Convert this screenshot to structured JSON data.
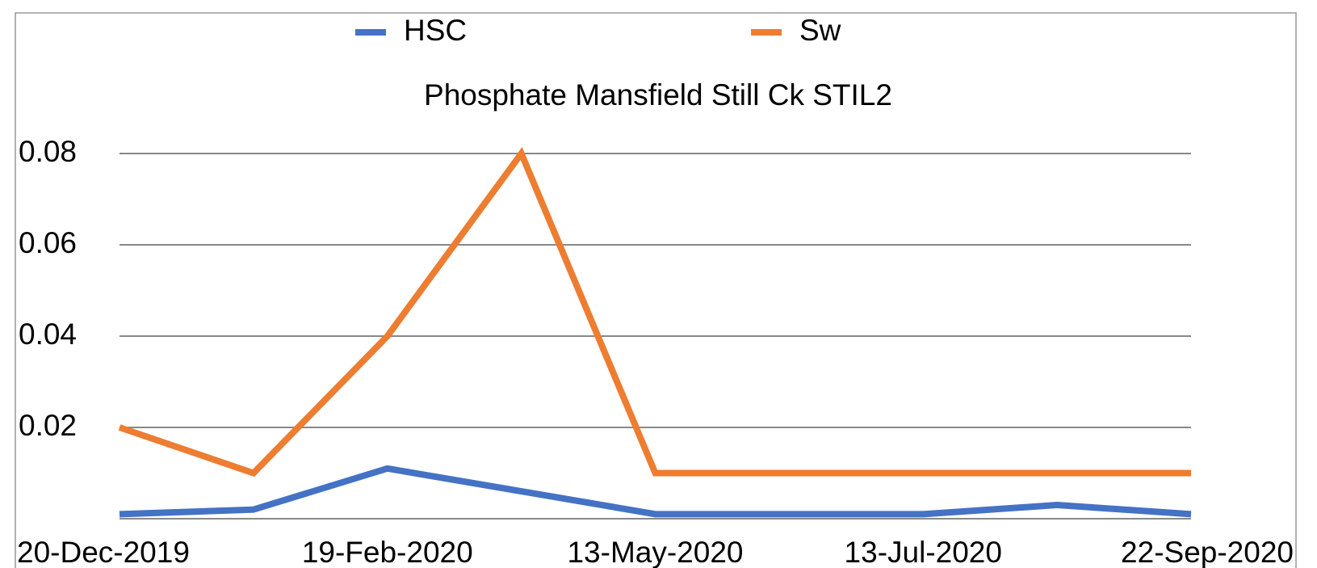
{
  "chart_data": {
    "type": "line",
    "title": "Phosphate Mansfield Still Ck STIL2",
    "categories": [
      "20-Dec-2019",
      null,
      "19-Feb-2020",
      null,
      "13-May-2020",
      null,
      "13-Jul-2020",
      null,
      "22-Sep-2020"
    ],
    "series": [
      {
        "name": "HSC",
        "color": "#4472c4",
        "values": [
          0.001,
          0.002,
          0.011,
          0.006,
          0.001,
          0.001,
          0.001,
          0.003,
          0.001
        ]
      },
      {
        "name": "Sw",
        "color": "#ed7d31",
        "values": [
          0.02,
          0.01,
          0.04,
          0.08,
          0.01,
          0.01,
          0.01,
          0.01,
          0.01
        ]
      }
    ],
    "ylim": [
      0,
      0.08
    ],
    "yticks": [
      0.02,
      0.04,
      0.06,
      0.08
    ],
    "grid": true,
    "legend": "top"
  }
}
